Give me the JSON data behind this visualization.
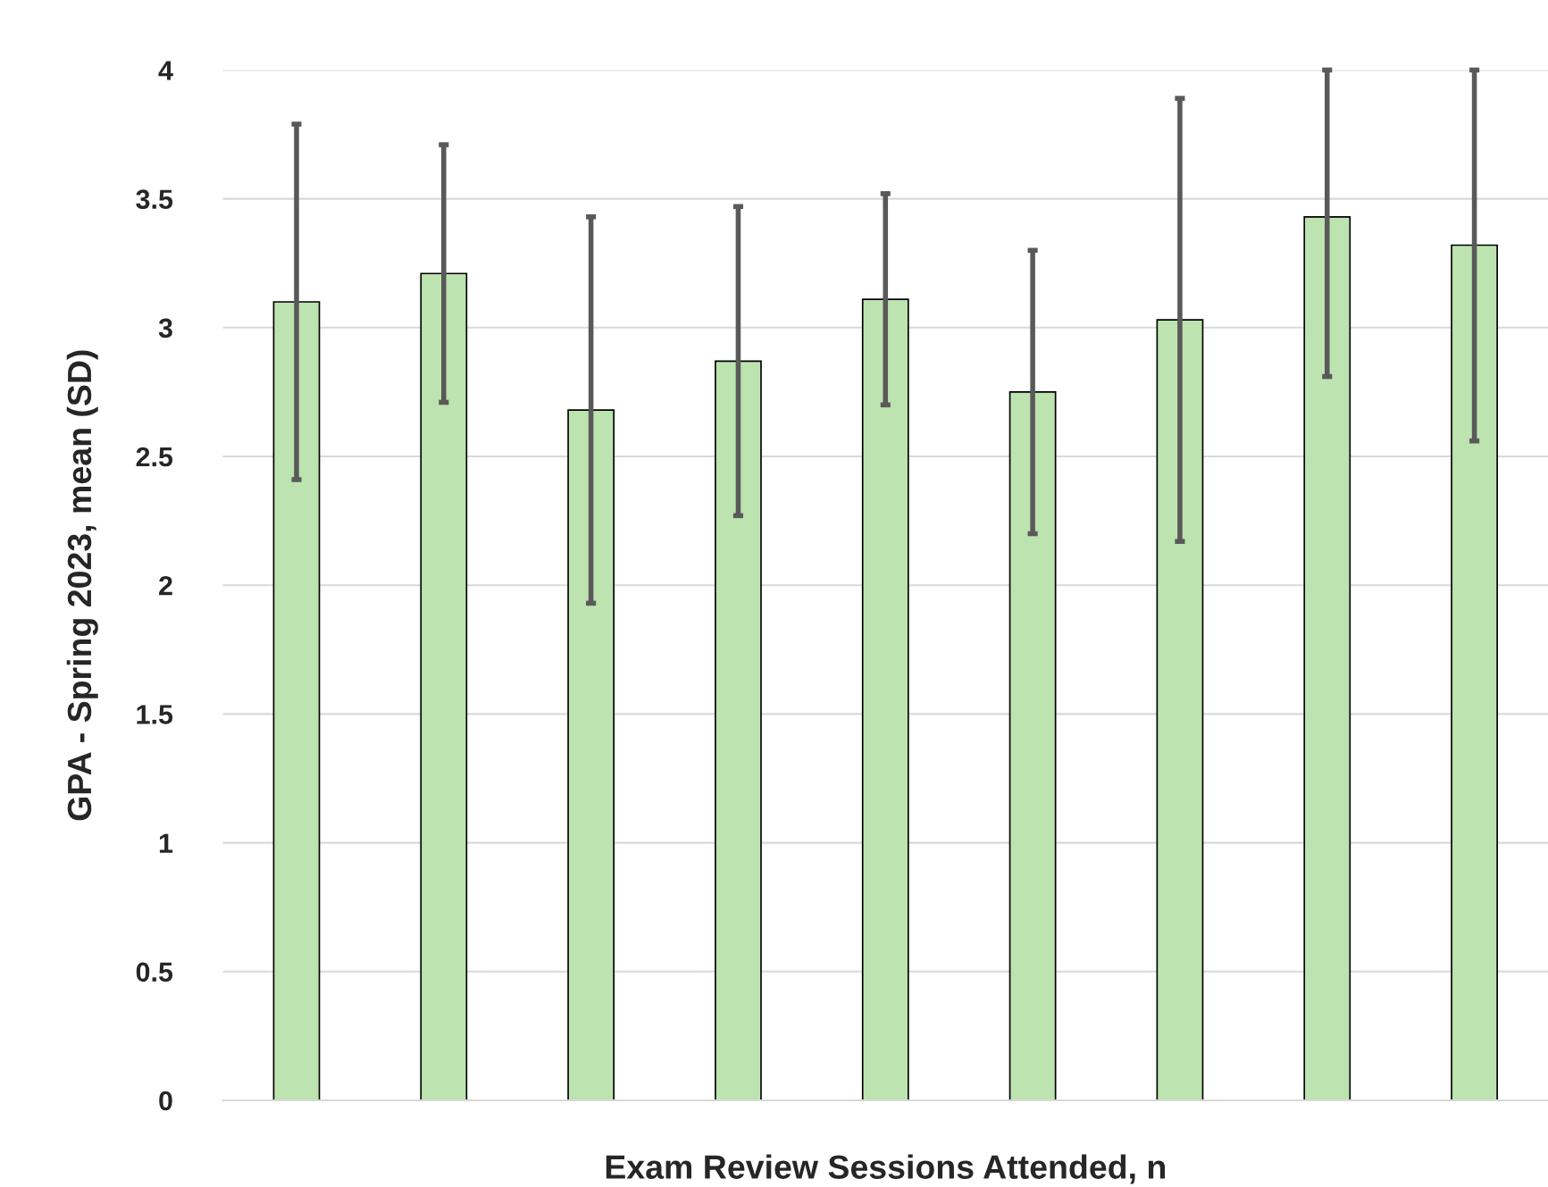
{
  "chart_data": {
    "type": "bar",
    "xlabel": "Exam Review Sessions Attended, n",
    "ylabel": "GPA - Spring 2023, mean (SD)",
    "categories": [
      null,
      null,
      null,
      null,
      null,
      null,
      null,
      null,
      null
    ],
    "values": [
      3.1,
      3.21,
      2.68,
      2.87,
      3.11,
      2.75,
      3.03,
      3.43,
      3.32
    ],
    "errors": [
      [
        2.41,
        3.79
      ],
      [
        2.71,
        3.71
      ],
      [
        1.93,
        3.43
      ],
      [
        2.27,
        3.47
      ],
      [
        2.7,
        3.52
      ],
      [
        2.2,
        3.3
      ],
      [
        2.17,
        3.89
      ],
      [
        2.81,
        4.0
      ],
      [
        2.56,
        4.0
      ]
    ],
    "color": "#bde3b0",
    "ylim": [
      0,
      4
    ],
    "yticks": [
      0,
      0.5,
      1,
      1.5,
      2,
      2.5,
      3,
      3.5,
      4
    ],
    "grid": "y"
  }
}
